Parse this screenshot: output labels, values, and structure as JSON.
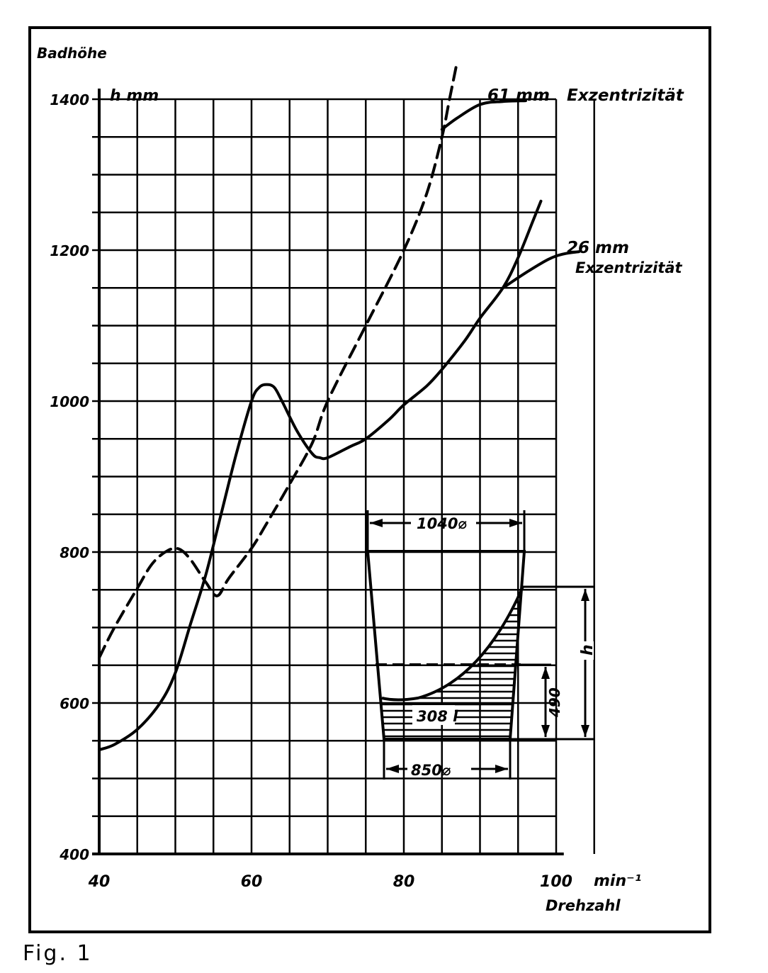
{
  "figure": {
    "caption": "Fig. 1"
  },
  "chart_data": {
    "type": "line",
    "title": "",
    "ylabel": "Badhöhe",
    "ylabel_unit": "h mm",
    "xlabel": "Drehzahl",
    "xlabel_unit": "min⁻¹",
    "xlim": [
      40,
      106
    ],
    "ylim": [
      400,
      1400
    ],
    "x_ticks": [
      40,
      60,
      80,
      100
    ],
    "y_ticks": [
      400,
      600,
      800,
      1000,
      1200,
      1400
    ],
    "grid": true,
    "series": [
      {
        "name": "61 mm Exzentrizität",
        "line_style": "dashed",
        "color": "#000000",
        "points": [
          [
            40,
            660
          ],
          [
            42,
            700
          ],
          [
            45,
            752
          ],
          [
            47,
            785
          ],
          [
            49,
            802
          ],
          [
            50.5,
            804
          ],
          [
            52,
            790
          ],
          [
            54,
            760
          ],
          [
            55.5,
            742
          ],
          [
            57,
            765
          ],
          [
            60,
            805
          ],
          [
            62,
            838
          ],
          [
            65,
            890
          ],
          [
            68,
            945
          ],
          [
            70,
            1000
          ],
          [
            75,
            1100
          ],
          [
            80,
            1200
          ],
          [
            83,
            1275
          ],
          [
            85,
            1350
          ],
          [
            86,
            1400
          ],
          [
            87,
            1450
          ]
        ]
      },
      {
        "name": "",
        "line_style": "solid",
        "color": "#000000",
        "points": [
          [
            85,
            1360
          ],
          [
            87,
            1375
          ],
          [
            90,
            1393
          ],
          [
            93,
            1397
          ],
          [
            96,
            1398
          ]
        ]
      },
      {
        "name": "26 mm Exzentrizität",
        "line_style": "solid",
        "color": "#000000",
        "points": [
          [
            40,
            538
          ],
          [
            42,
            545
          ],
          [
            45,
            565
          ],
          [
            48,
            600
          ],
          [
            50,
            640
          ],
          [
            52,
            705
          ],
          [
            54,
            770
          ],
          [
            56,
            850
          ],
          [
            58,
            930
          ],
          [
            60,
            1000
          ],
          [
            61,
            1018
          ],
          [
            62,
            1022
          ],
          [
            63,
            1018
          ],
          [
            64,
            1000
          ],
          [
            66,
            960
          ],
          [
            68,
            930
          ],
          [
            69,
            925
          ],
          [
            70,
            925
          ],
          [
            73,
            940
          ],
          [
            75,
            950
          ],
          [
            78,
            975
          ],
          [
            80,
            995
          ],
          [
            83,
            1020
          ],
          [
            85,
            1042
          ],
          [
            88,
            1080
          ],
          [
            90,
            1110
          ],
          [
            93,
            1150
          ],
          [
            95,
            1190
          ],
          [
            97,
            1240
          ],
          [
            98,
            1265
          ]
        ]
      },
      {
        "name": "",
        "line_style": "solid",
        "color": "#000000",
        "points": [
          [
            93,
            1150
          ],
          [
            96,
            1170
          ],
          [
            99,
            1188
          ],
          [
            101,
            1195
          ],
          [
            103,
            1198
          ]
        ]
      }
    ],
    "annotations": [
      {
        "text": "61 mm",
        "kind": "series-label"
      },
      {
        "text": "Exzentrizität",
        "kind": "series-label"
      },
      {
        "text": "26 mm",
        "kind": "series-label"
      },
      {
        "text": "Exzentrizität",
        "kind": "series-label"
      }
    ],
    "inset": {
      "description_labels": {
        "top_diameter": "1040⌀",
        "bottom_diameter": "850⌀",
        "volume": "308 l",
        "static_level": "490",
        "height_symbol": "h"
      }
    }
  }
}
